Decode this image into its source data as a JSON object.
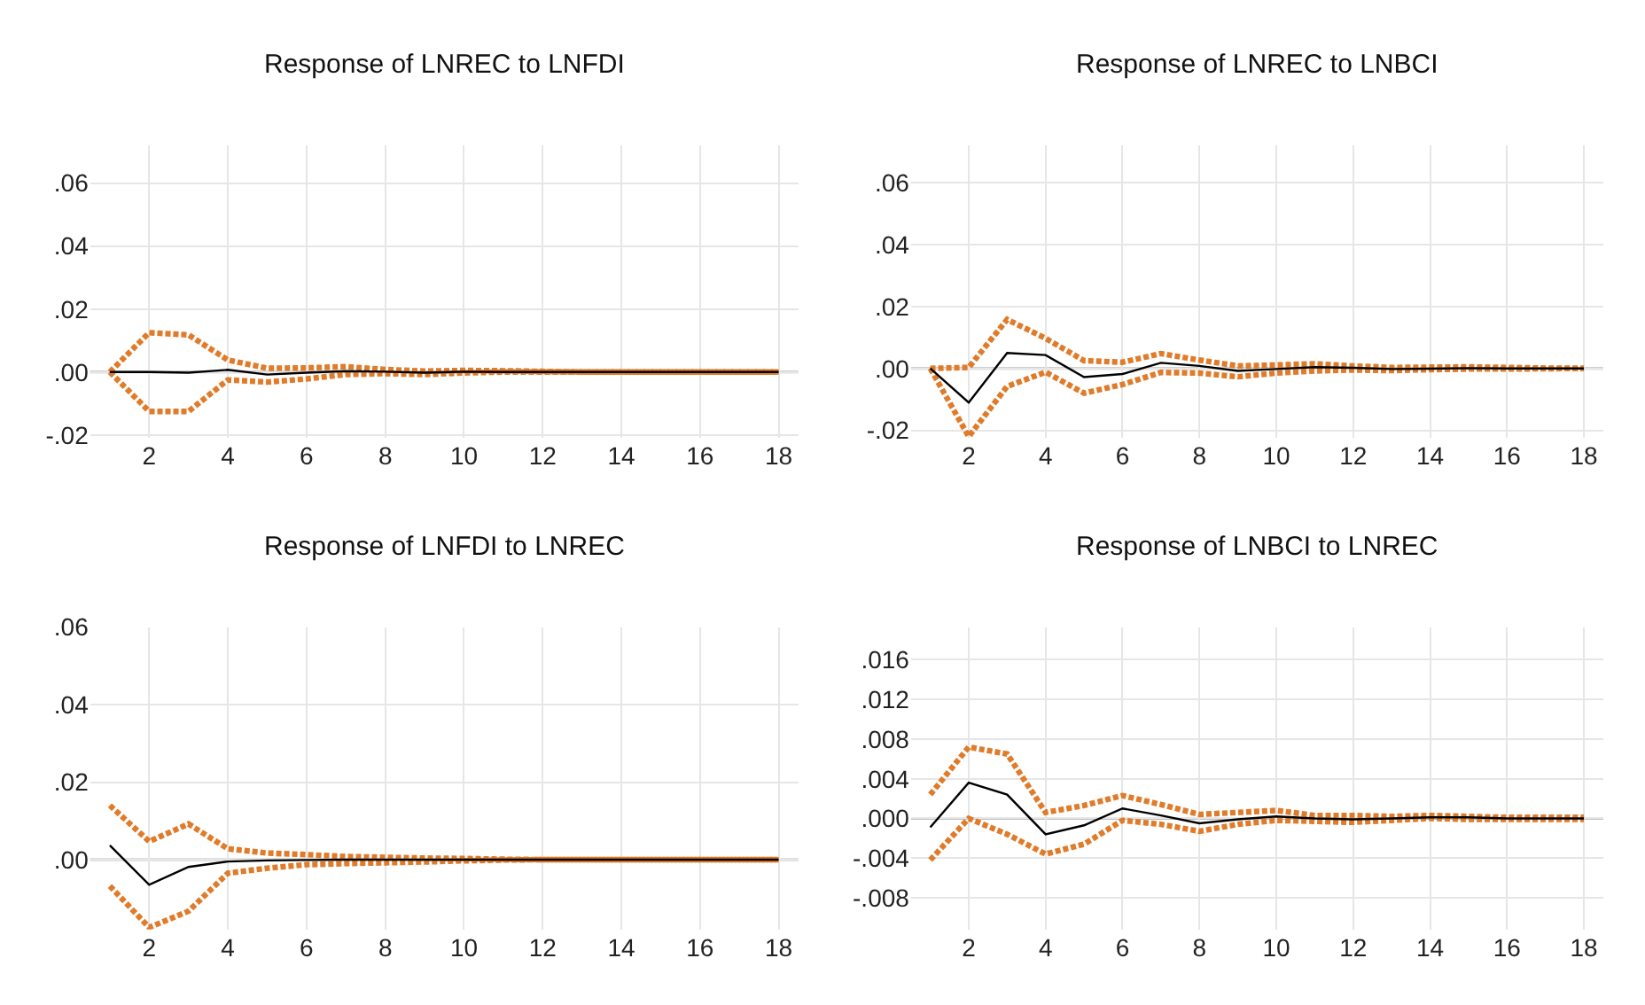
{
  "chart_data": [
    {
      "type": "line",
      "title": "Response of LNREC to LNFDI",
      "x": [
        1,
        2,
        3,
        4,
        5,
        6,
        7,
        8,
        9,
        10,
        11,
        12,
        13,
        14,
        15,
        16,
        17,
        18
      ],
      "xlim": [
        0.5,
        18.5
      ],
      "xticks": [
        2,
        4,
        6,
        8,
        10,
        12,
        14,
        16,
        18
      ],
      "ylim": [
        -0.021,
        0.072
      ],
      "yticks": [
        {
          "value": -0.02,
          "label": "-.02"
        },
        {
          "value": 0,
          "label": ".00"
        },
        {
          "value": 0.02,
          "label": ".02"
        },
        {
          "value": 0.04,
          "label": ".04"
        },
        {
          "value": 0.06,
          "label": ".06"
        }
      ],
      "grid": true,
      "ref_lines": [
        {
          "axis": "y",
          "value": 0,
          "color": "#bfbfbf"
        }
      ],
      "series": [
        {
          "color": "#000000",
          "line_style": "solid",
          "values": [
            0,
            0,
            -0.0002,
            0.0007,
            -0.0008,
            -0.0002,
            0.0003,
            0.0001,
            -0.0002,
            0.0001,
            0,
            0,
            0,
            0,
            0,
            0,
            0,
            0
          ]
        },
        {
          "color": "#e07b2a",
          "line_style": "dashed",
          "values": [
            0,
            0.0125,
            0.0118,
            0.0038,
            0.0012,
            0.0013,
            0.0017,
            0.0008,
            0.0003,
            0.0005,
            0.0004,
            0.0002,
            0,
            0,
            0,
            0,
            0,
            0
          ]
        },
        {
          "color": "#e07b2a",
          "line_style": "dashed",
          "values": [
            0,
            -0.0125,
            -0.0125,
            -0.0025,
            -0.0032,
            -0.0022,
            -0.0008,
            -0.0005,
            -0.0008,
            -0.0003,
            0,
            0,
            0,
            0,
            0,
            0,
            0,
            0
          ]
        }
      ]
    },
    {
      "type": "line",
      "title": "Response of LNREC to LNBCI",
      "x": [
        1,
        2,
        3,
        4,
        5,
        6,
        7,
        8,
        9,
        10,
        11,
        12,
        13,
        14,
        15,
        16,
        17,
        18
      ],
      "xlim": [
        0.5,
        18.5
      ],
      "xticks": [
        2,
        4,
        6,
        8,
        10,
        12,
        14,
        16,
        18
      ],
      "ylim": [
        -0.0225,
        0.072
      ],
      "yticks": [
        {
          "value": -0.02,
          "label": "-.02"
        },
        {
          "value": 0,
          "label": ".00"
        },
        {
          "value": 0.02,
          "label": ".02"
        },
        {
          "value": 0.04,
          "label": ".04"
        },
        {
          "value": 0.06,
          "label": ".06"
        }
      ],
      "grid": true,
      "ref_lines": [
        {
          "axis": "y",
          "value": 0,
          "color": "#bfbfbf"
        }
      ],
      "series": [
        {
          "color": "#000000",
          "line_style": "solid",
          "values": [
            0,
            -0.011,
            0.005,
            0.0043,
            -0.0028,
            -0.0018,
            0.0018,
            0.0008,
            -0.0008,
            -0.0002,
            0.0004,
            0.0002,
            -0.0002,
            -0.0001,
            0.0001,
            0,
            0,
            0
          ]
        },
        {
          "color": "#e07b2a",
          "line_style": "dashed",
          "values": [
            0,
            0.0003,
            0.0158,
            0.0097,
            0.0025,
            0.002,
            0.0048,
            0.0027,
            0.0008,
            0.0011,
            0.0015,
            0.0008,
            0.0003,
            0.0004,
            0.0005,
            0.0003,
            0.0001,
            0
          ]
        },
        {
          "color": "#e07b2a",
          "line_style": "dashed",
          "values": [
            0,
            -0.022,
            -0.0058,
            -0.0012,
            -0.008,
            -0.0052,
            -0.0013,
            -0.0015,
            -0.0027,
            -0.0015,
            -0.0008,
            -0.0005,
            -0.0007,
            -0.0004,
            -0.0002,
            -0.0002,
            -0.0001,
            0
          ]
        }
      ]
    },
    {
      "type": "line",
      "title": "Response of LNFDI to LNREC",
      "x": [
        1,
        2,
        3,
        4,
        5,
        6,
        7,
        8,
        9,
        10,
        11,
        12,
        13,
        14,
        15,
        16,
        17,
        18
      ],
      "xlim": [
        0.5,
        18.5
      ],
      "xticks": [
        2,
        4,
        6,
        8,
        10,
        12,
        14,
        16,
        18
      ],
      "ylim": [
        -0.018,
        0.06
      ],
      "yticks": [
        {
          "value": 0,
          "label": ".00"
        },
        {
          "value": 0.02,
          "label": ".02"
        },
        {
          "value": 0.04,
          "label": ".04"
        },
        {
          "value": 0.06,
          "label": ".06"
        }
      ],
      "grid": true,
      "ref_lines": [
        {
          "axis": "y",
          "value": 0,
          "color": "#bfbfbf"
        }
      ],
      "series": [
        {
          "color": "#000000",
          "line_style": "solid",
          "values": [
            0.0037,
            -0.0065,
            -0.0019,
            -0.0005,
            -0.0002,
            -0.0001,
            0,
            0,
            0,
            0,
            0,
            0,
            0,
            0,
            0,
            0,
            0,
            0
          ]
        },
        {
          "color": "#e07b2a",
          "line_style": "dashed",
          "values": [
            0.014,
            0.0047,
            0.0092,
            0.0028,
            0.0017,
            0.0013,
            0.0008,
            0.0006,
            0.0004,
            0.0003,
            0.0001,
            0,
            0,
            0,
            0,
            0,
            0,
            0
          ]
        },
        {
          "color": "#e07b2a",
          "line_style": "dashed",
          "values": [
            -0.0068,
            -0.0175,
            -0.0133,
            -0.0035,
            -0.0022,
            -0.0013,
            -0.001,
            -0.0008,
            -0.0006,
            -0.0003,
            -0.0001,
            0,
            0,
            0,
            0,
            0,
            0,
            0
          ]
        }
      ]
    },
    {
      "type": "line",
      "title": "Response of LNBCI to LNREC",
      "x": [
        1,
        2,
        3,
        4,
        5,
        6,
        7,
        8,
        9,
        10,
        11,
        12,
        13,
        14,
        15,
        16,
        17,
        18
      ],
      "xlim": [
        0.5,
        18.5
      ],
      "xticks": [
        2,
        4,
        6,
        8,
        10,
        12,
        14,
        16,
        18
      ],
      "ylim": [
        -0.0112,
        0.0193
      ],
      "yticks": [
        {
          "value": -0.008,
          "label": "-.008"
        },
        {
          "value": -0.004,
          "label": "-.004"
        },
        {
          "value": 0,
          "label": ".000"
        },
        {
          "value": 0.004,
          "label": ".004"
        },
        {
          "value": 0.008,
          "label": ".008"
        },
        {
          "value": 0.012,
          "label": ".012"
        },
        {
          "value": 0.016,
          "label": ".016"
        }
      ],
      "grid": true,
      "ref_lines": [
        {
          "axis": "y",
          "value": 0,
          "color": "#bfbfbf"
        }
      ],
      "series": [
        {
          "color": "#000000",
          "line_style": "solid",
          "values": [
            -0.0009,
            0.0036,
            0.0024,
            -0.0016,
            -0.0007,
            0.001,
            0.0003,
            -0.0005,
            -0.0001,
            0.0002,
            0,
            -0.0001,
            0,
            0.0001,
            0.0001,
            0,
            0,
            0
          ]
        },
        {
          "color": "#e07b2a",
          "line_style": "dashed",
          "values": [
            0.0024,
            0.0072,
            0.0065,
            0.0006,
            0.0013,
            0.0023,
            0.0014,
            0.0004,
            0.0006,
            0.0008,
            0.0003,
            0.0003,
            0.0002,
            0.0003,
            0.0002,
            0.0001,
            0.0001,
            0.0001
          ]
        },
        {
          "color": "#e07b2a",
          "line_style": "dashed",
          "values": [
            -0.0042,
            0,
            -0.0016,
            -0.0036,
            -0.0026,
            -0.0002,
            -0.0006,
            -0.0013,
            -0.0006,
            -0.0002,
            -0.0003,
            -0.0004,
            -0.0002,
            0,
            -0.0001,
            -0.0001,
            -0.0001,
            -0.0001
          ]
        }
      ]
    }
  ]
}
